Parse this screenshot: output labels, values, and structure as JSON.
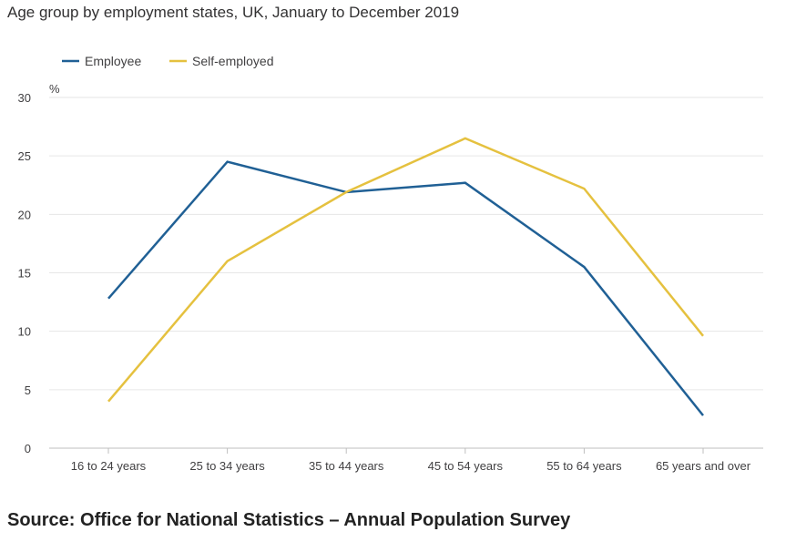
{
  "title": "Age group by employment states, UK, January to December 2019",
  "source": "Source: Office for National Statistics – Annual Population Survey",
  "chart_data": {
    "type": "line",
    "title": "Age group by employment states, UK, January to December 2019",
    "xlabel": "",
    "ylabel": "%",
    "categories": [
      "16 to 24 years",
      "25 to 34 years",
      "35 to 44 years",
      "45 to 54 years",
      "55 to 64 years",
      "65 years and over"
    ],
    "ylim": [
      0,
      30
    ],
    "yticks": [
      0,
      5,
      10,
      15,
      20,
      25,
      30
    ],
    "grid": true,
    "legend_position": "top-left",
    "series": [
      {
        "name": "Employee",
        "color": "#206095",
        "values": [
          12.8,
          24.5,
          21.9,
          22.7,
          15.5,
          2.8
        ]
      },
      {
        "name": "Self-employed",
        "color": "#e5c13f",
        "values": [
          4.0,
          16.0,
          21.9,
          26.5,
          22.2,
          9.6
        ]
      }
    ]
  }
}
